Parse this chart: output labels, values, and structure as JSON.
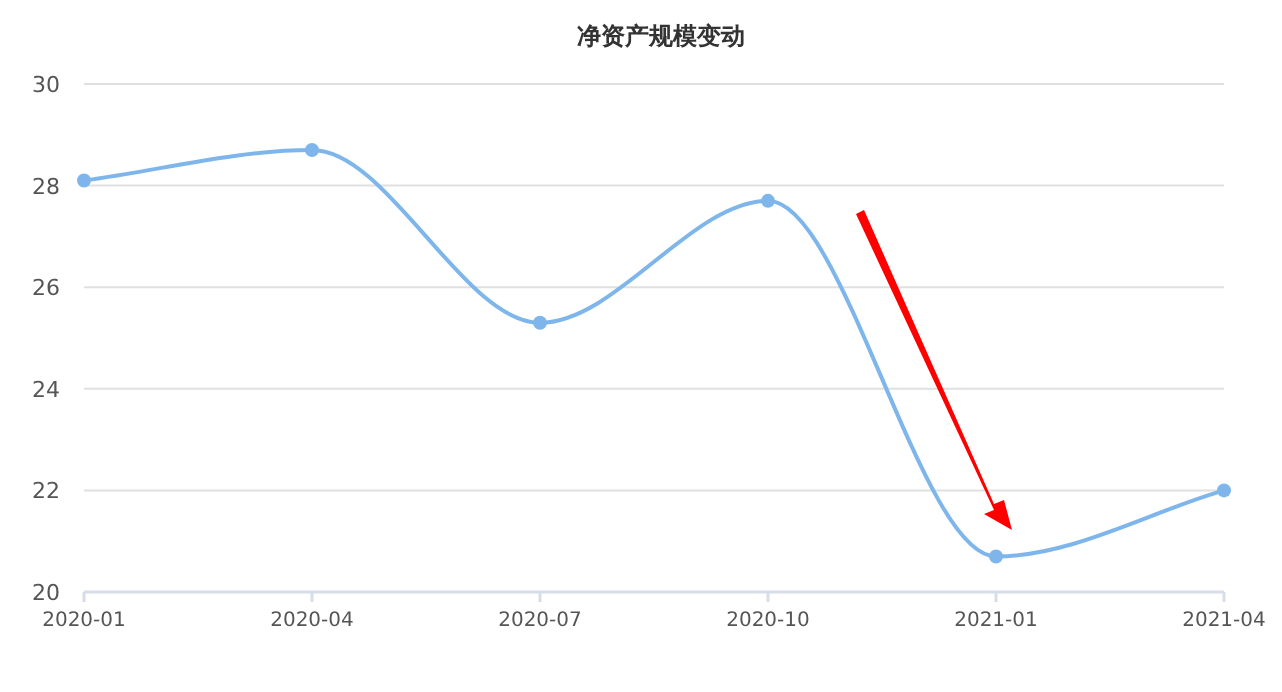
{
  "chart_data": {
    "type": "line",
    "title": "净资产规模变动",
    "categories": [
      "2020-01",
      "2020-04",
      "2020-07",
      "2020-10",
      "2021-01",
      "2021-04"
    ],
    "series": [
      {
        "color": "#7eb6ec",
        "values": [
          28.1,
          28.7,
          25.3,
          27.7,
          20.7,
          22.0
        ]
      }
    ],
    "ylim": [
      20,
      30
    ],
    "yticks": [
      20,
      22,
      24,
      26,
      28,
      30
    ],
    "grid": "y",
    "marker": "circle",
    "line_style": "solid"
  }
}
